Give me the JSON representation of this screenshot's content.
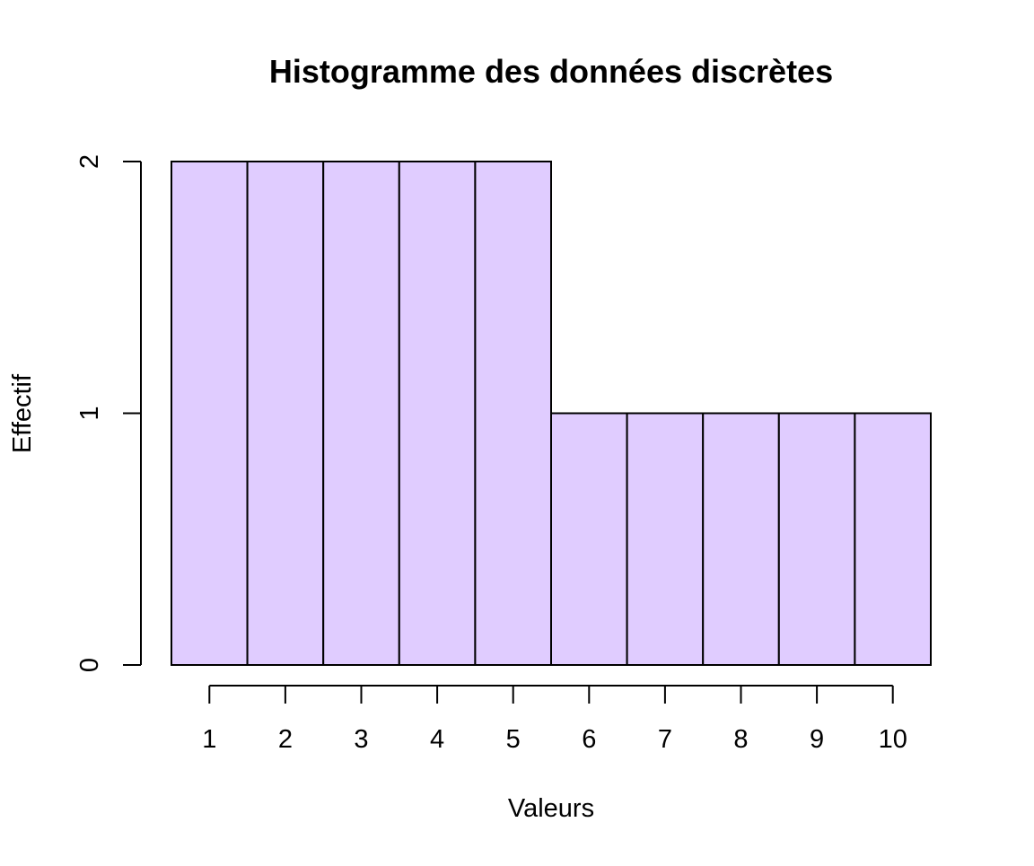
{
  "chart_data": {
    "type": "bar",
    "title": "Histogramme des données discrètes",
    "xlabel": "Valeurs",
    "ylabel": "Effectif",
    "categories": [
      "1",
      "2",
      "3",
      "4",
      "5",
      "6",
      "7",
      "8",
      "9",
      "10"
    ],
    "x": [
      1,
      2,
      3,
      4,
      5,
      6,
      7,
      8,
      9,
      10
    ],
    "values": [
      2,
      2,
      2,
      2,
      2,
      1,
      1,
      1,
      1,
      1
    ],
    "x_bins": [
      [
        0.5,
        1.5
      ],
      [
        1.5,
        2.5
      ],
      [
        2.5,
        3.5
      ],
      [
        3.5,
        4.5
      ],
      [
        4.5,
        5.5
      ],
      [
        5.5,
        6.5
      ],
      [
        6.5,
        7.5
      ],
      [
        7.5,
        8.5
      ],
      [
        8.5,
        9.5
      ],
      [
        9.5,
        10.5
      ]
    ],
    "xlim": [
      0.5,
      10.5
    ],
    "ylim": [
      0,
      2
    ],
    "y_ticks": [
      "0",
      "1",
      "2"
    ],
    "x_ticks": [
      "1",
      "2",
      "3",
      "4",
      "5",
      "6",
      "7",
      "8",
      "9",
      "10"
    ],
    "grid": false,
    "legend": "none",
    "colors": {
      "bar_fill": "#e0ccff",
      "bar_stroke": "#000000",
      "axis": "#000000",
      "background": "#ffffff"
    }
  }
}
